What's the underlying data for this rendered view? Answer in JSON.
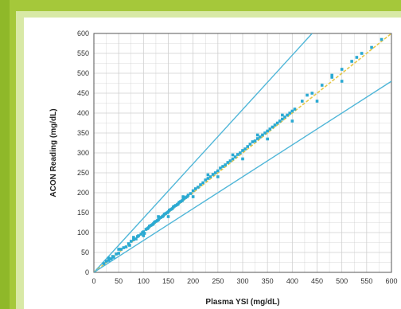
{
  "colors": {
    "background": "#a5c83a",
    "bounds": "#4fb6d8",
    "fit": "#e6c84a",
    "points": "#2aa9d2",
    "grid": "#cfcfcf"
  },
  "chart_data": {
    "type": "scatter",
    "xlabel": "Plasma YSI (mg/dL)",
    "ylabel": "ACON Reading (mg/dL)",
    "xlim": [
      0,
      600
    ],
    "ylim": [
      0,
      600
    ],
    "xticks": [
      "0",
      "50",
      "100",
      "150",
      "200",
      "250",
      "300",
      "350",
      "400",
      "450",
      "500",
      "550",
      "600"
    ],
    "yticks": [
      "0",
      "50",
      "100",
      "150",
      "200",
      "250",
      "300",
      "350",
      "400",
      "450",
      "500",
      "550",
      "600"
    ],
    "grid": true,
    "lines": [
      {
        "kind": "upper-bound",
        "points": [
          [
            0,
            0
          ],
          [
            440,
            600
          ]
        ]
      },
      {
        "kind": "identity",
        "points": [
          [
            0,
            0
          ],
          [
            600,
            600
          ]
        ]
      },
      {
        "kind": "lower-bound",
        "points": [
          [
            0,
            0
          ],
          [
            600,
            480
          ]
        ]
      }
    ],
    "series": [
      {
        "points": [
          [
            20,
            22
          ],
          [
            25,
            28
          ],
          [
            30,
            30
          ],
          [
            35,
            34
          ],
          [
            38,
            40
          ],
          [
            40,
            38
          ],
          [
            45,
            46
          ],
          [
            50,
            48
          ],
          [
            55,
            58
          ],
          [
            60,
            62
          ],
          [
            65,
            64
          ],
          [
            70,
            72
          ],
          [
            72,
            68
          ],
          [
            75,
            78
          ],
          [
            80,
            82
          ],
          [
            85,
            84
          ],
          [
            88,
            90
          ],
          [
            90,
            92
          ],
          [
            95,
            96
          ],
          [
            98,
            100
          ],
          [
            100,
            102
          ],
          [
            102,
            98
          ],
          [
            105,
            108
          ],
          [
            108,
            110
          ],
          [
            110,
            112
          ],
          [
            112,
            116
          ],
          [
            115,
            118
          ],
          [
            118,
            120
          ],
          [
            120,
            122
          ],
          [
            122,
            126
          ],
          [
            125,
            128
          ],
          [
            128,
            130
          ],
          [
            130,
            132
          ],
          [
            132,
            136
          ],
          [
            135,
            138
          ],
          [
            138,
            140
          ],
          [
            140,
            142
          ],
          [
            142,
            146
          ],
          [
            145,
            148
          ],
          [
            148,
            150
          ],
          [
            150,
            152
          ],
          [
            152,
            156
          ],
          [
            155,
            158
          ],
          [
            158,
            160
          ],
          [
            160,
            164
          ],
          [
            162,
            166
          ],
          [
            165,
            168
          ],
          [
            168,
            170
          ],
          [
            170,
            172
          ],
          [
            172,
            176
          ],
          [
            175,
            178
          ],
          [
            178,
            180
          ],
          [
            180,
            184
          ],
          [
            182,
            186
          ],
          [
            185,
            188
          ],
          [
            188,
            190
          ],
          [
            190,
            194
          ],
          [
            195,
            198
          ],
          [
            200,
            205
          ],
          [
            205,
            210
          ],
          [
            210,
            214
          ],
          [
            215,
            220
          ],
          [
            220,
            225
          ],
          [
            225,
            232
          ],
          [
            230,
            236
          ],
          [
            235,
            240
          ],
          [
            240,
            246
          ],
          [
            245,
            250
          ],
          [
            250,
            255
          ],
          [
            255,
            262
          ],
          [
            260,
            266
          ],
          [
            265,
            270
          ],
          [
            270,
            276
          ],
          [
            275,
            280
          ],
          [
            280,
            285
          ],
          [
            285,
            290
          ],
          [
            290,
            296
          ],
          [
            295,
            300
          ],
          [
            300,
            306
          ],
          [
            305,
            310
          ],
          [
            310,
            316
          ],
          [
            315,
            322
          ],
          [
            320,
            328
          ],
          [
            325,
            330
          ],
          [
            330,
            336
          ],
          [
            335,
            340
          ],
          [
            340,
            345
          ],
          [
            345,
            350
          ],
          [
            350,
            355
          ],
          [
            355,
            360
          ],
          [
            360,
            365
          ],
          [
            365,
            370
          ],
          [
            370,
            375
          ],
          [
            375,
            380
          ],
          [
            380,
            385
          ],
          [
            385,
            390
          ],
          [
            390,
            395
          ],
          [
            395,
            400
          ],
          [
            400,
            405
          ],
          [
            405,
            410
          ],
          [
            420,
            430
          ],
          [
            440,
            450
          ],
          [
            460,
            470
          ],
          [
            480,
            490
          ],
          [
            500,
            510
          ],
          [
            520,
            530
          ],
          [
            530,
            540
          ],
          [
            540,
            550
          ],
          [
            560,
            565
          ],
          [
            580,
            585
          ],
          [
            50,
            58
          ],
          [
            100,
            92
          ],
          [
            150,
            140
          ],
          [
            200,
            190
          ],
          [
            250,
            240
          ],
          [
            300,
            285
          ],
          [
            350,
            335
          ],
          [
            400,
            380
          ],
          [
            450,
            430
          ],
          [
            500,
            480
          ],
          [
            30,
            36
          ],
          [
            80,
            88
          ],
          [
            130,
            140
          ],
          [
            180,
            190
          ],
          [
            230,
            245
          ],
          [
            280,
            295
          ],
          [
            330,
            345
          ],
          [
            380,
            395
          ],
          [
            430,
            445
          ],
          [
            480,
            495
          ]
        ]
      }
    ]
  }
}
